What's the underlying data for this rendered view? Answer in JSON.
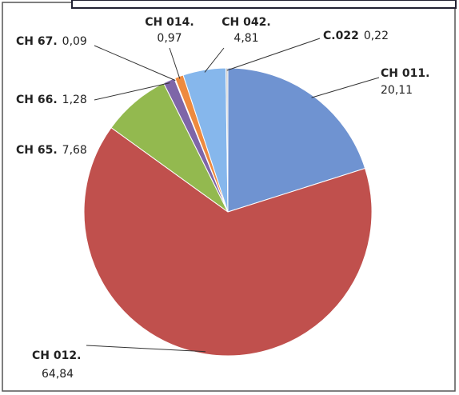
{
  "chart_data": {
    "type": "pie",
    "categories": [
      "CH 011.",
      "CH 012.",
      "CH 65.",
      "CH 66.",
      "CH 67.",
      "CH 014.",
      "CH 042.",
      "C.022"
    ],
    "values": [
      20.11,
      64.84,
      7.68,
      1.28,
      0.09,
      0.97,
      4.81,
      0.22
    ],
    "value_labels": [
      "20,11",
      "64,84",
      "7,68",
      "1,28",
      "0,09",
      "0,97",
      "4,81",
      "0,22"
    ],
    "colors": [
      "#6f93d1",
      "#c0504d",
      "#93b94f",
      "#7e66a8",
      "#4bacc6",
      "#ee8a3f",
      "#86b7ec",
      "#c8c8c8"
    ]
  }
}
